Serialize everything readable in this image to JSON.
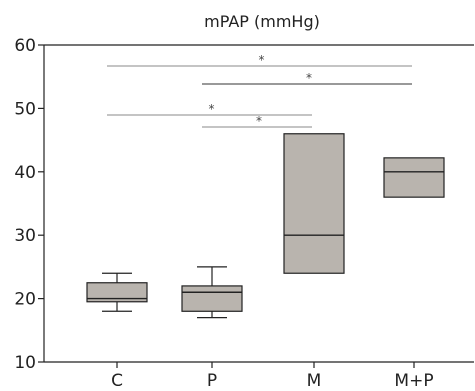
{
  "chart_data": {
    "type": "box",
    "title": "mPAP (mmHg)",
    "xlabel": "",
    "ylabel": "",
    "ylim": [
      10,
      60
    ],
    "yticks": [
      10,
      20,
      30,
      40,
      50,
      60
    ],
    "categories": [
      "C",
      "P",
      "M",
      "M+P"
    ],
    "boxes": [
      {
        "category": "C",
        "whisker_low": 18,
        "q1": 19.5,
        "median": 20,
        "q3": 22.5,
        "whisker_high": 24
      },
      {
        "category": "P",
        "whisker_low": 17,
        "q1": 18,
        "median": 21,
        "q3": 22,
        "whisker_high": 25
      },
      {
        "category": "M",
        "whisker_low": null,
        "q1": 24,
        "median": 30,
        "q3": 46,
        "whisker_high": null
      },
      {
        "category": "M+P",
        "whisker_low": null,
        "q1": 36,
        "median": 40,
        "q3": 42.2,
        "whisker_high": null
      }
    ],
    "significance": [
      {
        "from": "C",
        "to": "M+P",
        "label": "*"
      },
      {
        "from": "P",
        "to": "M+P",
        "label": "*"
      },
      {
        "from": "C",
        "to": "M",
        "label": "*"
      },
      {
        "from": "P",
        "to": "M",
        "label": "*"
      }
    ],
    "grid": false,
    "colors": {
      "box_fill": "#b9b4ae",
      "line": "#222222",
      "sig_line": "#888888"
    }
  }
}
